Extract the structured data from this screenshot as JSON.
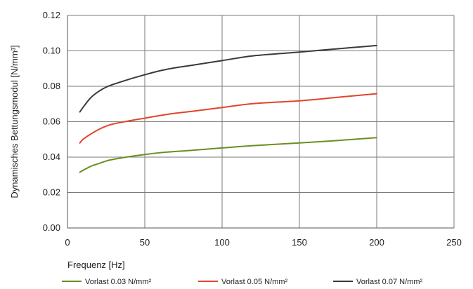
{
  "chart_data": {
    "type": "line",
    "title": "",
    "xlabel": "Frequenz [Hz]",
    "ylabel": "Dynamisches Bettungsmodul [N/mm³]",
    "xlim": [
      0,
      250
    ],
    "ylim": [
      0,
      0.12
    ],
    "x_ticks": [
      0,
      50,
      100,
      150,
      200,
      250
    ],
    "x_tick_labels": [
      "0",
      "50",
      "100",
      "150",
      "200",
      "250"
    ],
    "y_ticks": [
      0,
      0.02,
      0.04,
      0.06,
      0.08,
      0.1,
      0.12
    ],
    "y_tick_labels": [
      "0.00",
      "0.02",
      "0.04",
      "0.06",
      "0.08",
      "0.10",
      "0.12"
    ],
    "grid": true,
    "legend_position": "bottom",
    "series": [
      {
        "name": "Vorlast 0.03 N/mm²",
        "color": "#6b8e23",
        "x": [
          8,
          10,
          15,
          20,
          25,
          30,
          40,
          50,
          60,
          70,
          80,
          100,
          120,
          150,
          175,
          200
        ],
        "y": [
          0.0315,
          0.0325,
          0.0348,
          0.0363,
          0.0378,
          0.0388,
          0.0403,
          0.0415,
          0.0425,
          0.0432,
          0.0438,
          0.0452,
          0.0465,
          0.048,
          0.0494,
          0.051
        ]
      },
      {
        "name": "Vorlast 0.05 N/mm²",
        "color": "#e0452a",
        "x": [
          8,
          10,
          15,
          20,
          25,
          30,
          40,
          50,
          60,
          70,
          80,
          100,
          120,
          150,
          175,
          200
        ],
        "y": [
          0.048,
          0.05,
          0.053,
          0.0555,
          0.0575,
          0.0588,
          0.0605,
          0.062,
          0.0635,
          0.0648,
          0.0658,
          0.068,
          0.0702,
          0.0718,
          0.0738,
          0.0758
        ]
      },
      {
        "name": "Vorlast 0.07 N/mm²",
        "color": "#3a3a3a",
        "x": [
          8,
          10,
          15,
          20,
          25,
          30,
          40,
          50,
          60,
          70,
          80,
          100,
          120,
          150,
          175,
          200
        ],
        "y": [
          0.0655,
          0.068,
          0.0735,
          0.077,
          0.0795,
          0.0812,
          0.084,
          0.0865,
          0.0888,
          0.0905,
          0.0918,
          0.0945,
          0.0972,
          0.0993,
          0.1012,
          0.103
        ]
      }
    ]
  }
}
